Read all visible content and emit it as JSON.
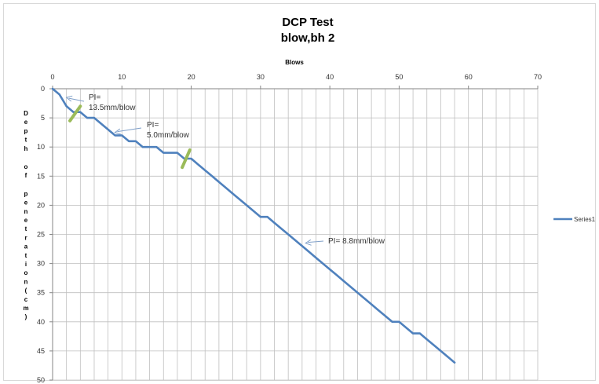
{
  "chart_data": {
    "type": "line",
    "title_lines": [
      "DCP  Test",
      "blow,bh 2"
    ],
    "xlabel": "Blows",
    "ylabel": "Depth of penetration(cm)",
    "x_axis_position": "top",
    "y_inverted": true,
    "xlim": [
      0,
      70
    ],
    "ylim": [
      0,
      50
    ],
    "x_ticks": [
      0,
      10,
      20,
      30,
      40,
      50,
      60,
      70
    ],
    "y_ticks": [
      0,
      5,
      10,
      15,
      20,
      25,
      30,
      35,
      40,
      45,
      50
    ],
    "x_minor_gridlines_every": 2,
    "grid": true,
    "legend_position": "right",
    "colors": {
      "series": "#4F81BD",
      "marker": "#9BBB59",
      "grid": "#BFBFBF",
      "axis": "#868686"
    },
    "series": [
      {
        "name": "Series1",
        "x": [
          0,
          1,
          2,
          3,
          4,
          5,
          6,
          7,
          8,
          9,
          10,
          11,
          12,
          13,
          14,
          15,
          16,
          17,
          18,
          19,
          20,
          21,
          22,
          23,
          24,
          25,
          26,
          27,
          28,
          29,
          30,
          31,
          32,
          33,
          34,
          35,
          36,
          37,
          38,
          39,
          40,
          41,
          42,
          43,
          44,
          45,
          46,
          47,
          48,
          49,
          50,
          51,
          52,
          53,
          54,
          55,
          56,
          57,
          58
        ],
        "y": [
          0,
          1,
          3,
          4,
          4,
          5,
          5,
          6,
          7,
          8,
          8,
          9,
          9,
          10,
          10,
          10,
          11,
          11,
          11,
          12,
          12,
          13,
          14,
          15,
          16,
          17,
          18,
          19,
          20,
          21,
          22,
          22,
          23,
          24,
          25,
          26,
          27,
          28,
          29,
          30,
          31,
          32,
          33,
          34,
          35,
          36,
          37,
          38,
          39,
          40,
          40,
          41,
          42,
          42,
          43,
          44,
          45,
          46,
          47
        ]
      }
    ],
    "annotations": [
      {
        "lines": [
          "PI=",
          "13.5mm/blow"
        ],
        "arrow_to": [
          2,
          1.5
        ]
      },
      {
        "lines": [
          "PI=",
          "5.0mm/blow"
        ],
        "arrow_to": [
          9,
          7.5
        ]
      },
      {
        "lines": [
          "PI= 8.8mm/blow"
        ],
        "arrow_to": [
          36.5,
          26.5
        ]
      }
    ],
    "break_markers": [
      {
        "x": [
          2.5,
          4
        ],
        "y": [
          5.5,
          3
        ]
      },
      {
        "x": [
          18.7,
          19.8
        ],
        "y": [
          13.5,
          10.5
        ]
      }
    ]
  }
}
